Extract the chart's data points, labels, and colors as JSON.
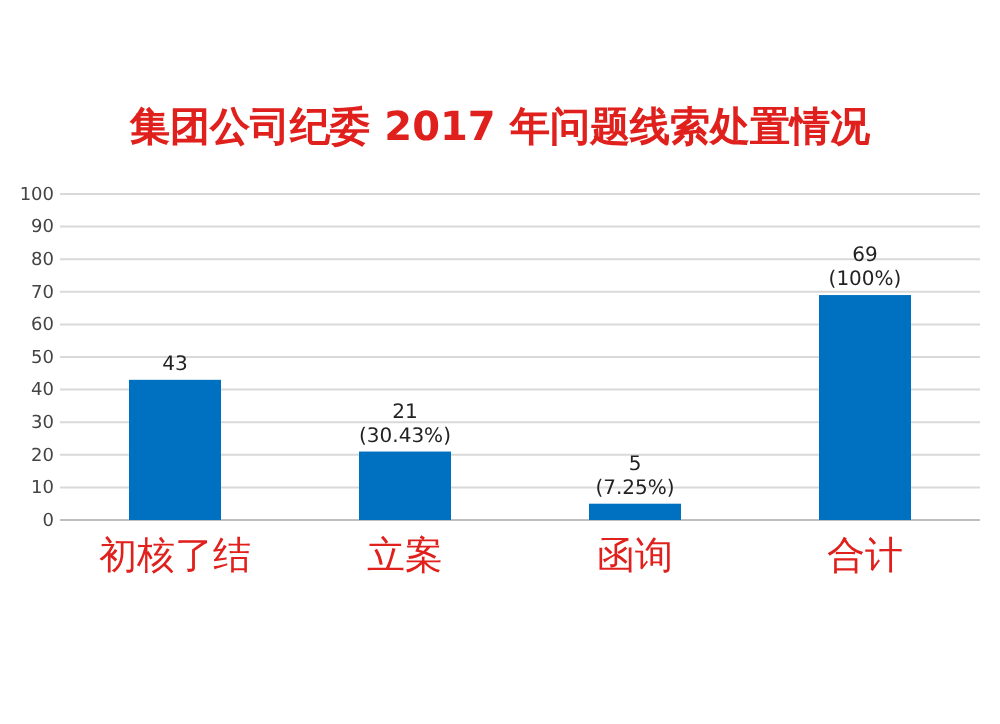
{
  "chart_data": {
    "type": "bar",
    "title": "集团公司纪委 2017 年问题线索处置情况",
    "categories": [
      "初核了结",
      "立案",
      "函询",
      "合计"
    ],
    "values": [
      43,
      21,
      5,
      69
    ],
    "value_labels": [
      "43",
      "21\n(30.43%)",
      "5\n(7.25%)",
      "69\n(100%)"
    ],
    "color": "#0070c0",
    "ylim": [
      0,
      100
    ],
    "yticks": [
      0,
      10,
      20,
      30,
      40,
      50,
      60,
      70,
      80,
      90,
      100
    ],
    "grid": "y"
  }
}
